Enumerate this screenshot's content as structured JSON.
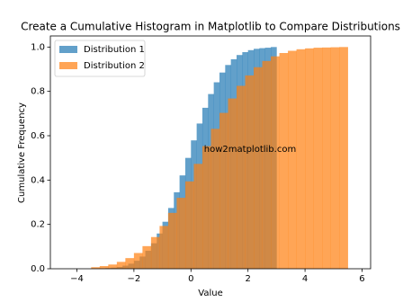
{
  "chart_data": {
    "type": "histogram",
    "title": "Create a Cumulative Histogram in Matplotlib to Compare Distributions",
    "x_label": "Value",
    "y_label": "Cumulative Frequency",
    "annotation": "how2matplotlib.com",
    "cumulative": true,
    "grid": false,
    "legend": "upper left",
    "xlim": [
      -4.93,
      6.3
    ],
    "ylim": [
      0,
      1.05
    ],
    "xticks": [
      {
        "value": -4,
        "label": "−4"
      },
      {
        "value": -2,
        "label": "−2"
      },
      0,
      2,
      4,
      6
    ],
    "yticks": [
      {
        "value": 0,
        "label": "0.0"
      },
      {
        "value": 0.2,
        "label": "0.2"
      },
      {
        "value": 0.4,
        "label": "0.4"
      },
      {
        "value": 0.6,
        "label": "0.6"
      },
      {
        "value": 0.8,
        "label": "0.8"
      },
      {
        "value": 1,
        "label": "1.0"
      }
    ],
    "series": [
      {
        "name": "Distribution 1",
        "color": "#1f77b4",
        "bins": [
          -3.0,
          -2.8,
          -2.6,
          -2.4,
          -2.2,
          -2.0,
          -1.8,
          -1.6,
          -1.4,
          -1.2,
          -1.0,
          -0.8,
          -0.6,
          -0.4,
          -0.2,
          0.0,
          0.2,
          0.4,
          0.6,
          0.8,
          1.0,
          1.2,
          1.4,
          1.6,
          1.8,
          2.0,
          2.2,
          2.4,
          2.6,
          2.8,
          3.0
        ],
        "values": [
          0.003,
          0.005,
          0.008,
          0.014,
          0.023,
          0.036,
          0.055,
          0.081,
          0.115,
          0.159,
          0.212,
          0.274,
          0.345,
          0.421,
          0.5,
          0.579,
          0.655,
          0.726,
          0.788,
          0.841,
          0.885,
          0.919,
          0.945,
          0.964,
          0.977,
          0.986,
          0.992,
          0.995,
          0.997,
          1.0
        ]
      },
      {
        "name": "Distribution 2",
        "color": "#ff7f0e",
        "bins": [
          -3.5,
          -3.2,
          -2.9,
          -2.6,
          -2.3,
          -2.0,
          -1.7,
          -1.4,
          -1.1,
          -0.8,
          -0.5,
          -0.2,
          0.1,
          0.4,
          0.7,
          1.0,
          1.3,
          1.6,
          1.9,
          2.2,
          2.5,
          2.8,
          3.1,
          3.4,
          3.7,
          4.0,
          4.3,
          4.6,
          4.9,
          5.2,
          5.5
        ],
        "values": [
          0.007,
          0.012,
          0.019,
          0.031,
          0.048,
          0.071,
          0.102,
          0.143,
          0.193,
          0.252,
          0.32,
          0.394,
          0.473,
          0.553,
          0.631,
          0.703,
          0.768,
          0.825,
          0.872,
          0.909,
          0.937,
          0.958,
          0.973,
          0.983,
          0.99,
          0.994,
          0.997,
          0.998,
          0.999,
          1.0
        ]
      }
    ]
  }
}
